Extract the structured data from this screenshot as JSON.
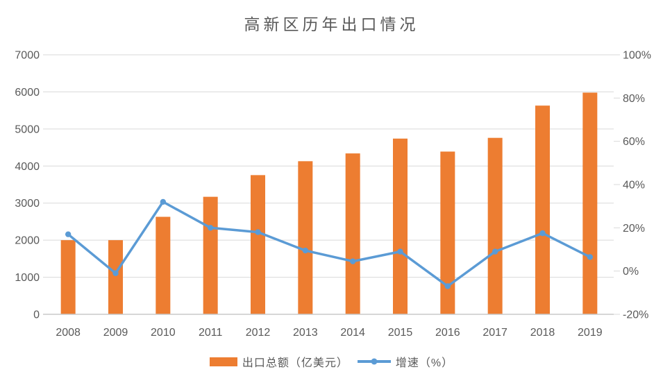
{
  "chart_data": {
    "type": "combo-bar-line",
    "title": "高新区历年出口情况",
    "categories": [
      "2008",
      "2009",
      "2010",
      "2011",
      "2012",
      "2013",
      "2014",
      "2015",
      "2016",
      "2017",
      "2018",
      "2019"
    ],
    "series": [
      {
        "name": "出口总额（亿美元）",
        "type": "bar",
        "axis": "left",
        "values": [
          2000,
          2000,
          2630,
          3170,
          3755,
          4130,
          4340,
          4740,
          4390,
          4760,
          5630,
          5980
        ]
      },
      {
        "name": "增速（%）",
        "type": "line",
        "axis": "right",
        "values": [
          17,
          -1,
          32,
          20,
          18,
          9.5,
          4.5,
          9,
          -7,
          9,
          17.5,
          6.5
        ]
      }
    ],
    "left_axis": {
      "min": 0,
      "max": 7000,
      "step": 1000,
      "ticks": [
        "0",
        "1000",
        "2000",
        "3000",
        "4000",
        "5000",
        "6000",
        "7000"
      ]
    },
    "right_axis": {
      "min": -20,
      "max": 100,
      "step": 20,
      "ticks": [
        "-20%",
        "0%",
        "20%",
        "40%",
        "60%",
        "80%",
        "100%"
      ]
    },
    "legend_position": "bottom",
    "grid": true
  },
  "colors": {
    "bar": "#ED7D31",
    "line": "#5B9BD5",
    "grid": "#D9D9D9",
    "axis_line": "#C9C9C9",
    "text": "#595959",
    "background": "#FFFFFF"
  }
}
